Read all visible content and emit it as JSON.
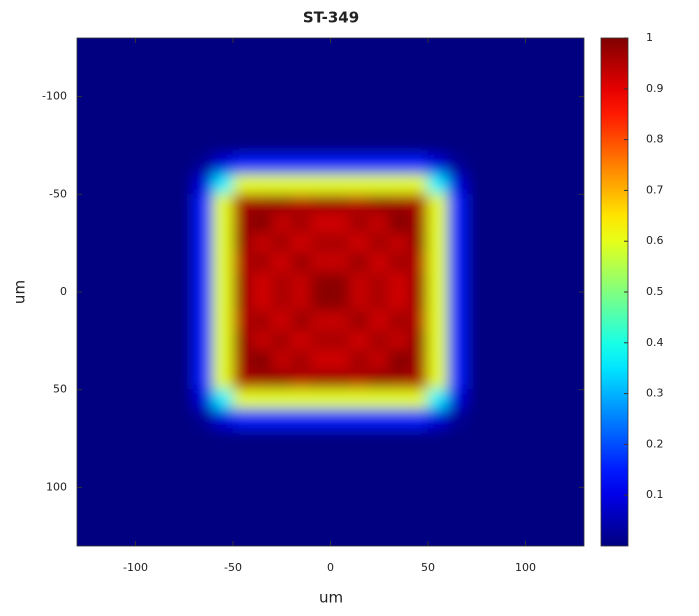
{
  "chart_data": {
    "type": "heatmap",
    "title": "ST-349",
    "xlabel": "um",
    "ylabel": "um",
    "colormap": "jet",
    "y_reversed": true,
    "xlim": [
      -130,
      130
    ],
    "ylim": [
      -130,
      130
    ],
    "xticks": [
      -100,
      -50,
      0,
      50,
      100
    ],
    "yticks": [
      -100,
      -50,
      0,
      50,
      100
    ],
    "clim": [
      0,
      1
    ],
    "cticks": [
      0.1,
      0.2,
      0.3,
      0.4,
      0.5,
      0.6,
      0.7,
      0.8,
      0.9,
      1
    ],
    "x": [
      -125,
      -115,
      -105,
      -95,
      -85,
      -75,
      -65,
      -55,
      -45,
      -35,
      -25,
      -15,
      -5,
      5,
      15,
      25,
      35,
      45,
      55,
      65,
      75,
      85,
      95,
      105,
      115,
      125
    ],
    "y": [
      -125,
      -115,
      -105,
      -95,
      -85,
      -75,
      -65,
      -55,
      -45,
      -35,
      -25,
      -15,
      -5,
      5,
      15,
      25,
      35,
      45,
      55,
      65,
      75,
      85,
      95,
      105,
      115,
      125
    ],
    "z": [
      [
        0,
        0,
        0,
        0,
        0,
        0,
        0,
        0,
        0,
        0,
        0,
        0,
        0,
        0,
        0,
        0,
        0,
        0,
        0,
        0,
        0,
        0,
        0,
        0,
        0,
        0
      ],
      [
        0,
        0,
        0,
        0,
        0,
        0,
        0,
        0,
        0,
        0,
        0,
        0,
        0,
        0,
        0,
        0,
        0,
        0,
        0,
        0,
        0,
        0,
        0,
        0,
        0,
        0
      ],
      [
        0,
        0,
        0,
        0,
        0,
        0,
        0,
        0,
        0,
        0,
        0,
        0,
        0,
        0,
        0,
        0,
        0,
        0,
        0,
        0,
        0,
        0,
        0,
        0,
        0,
        0
      ],
      [
        0,
        0,
        0,
        0,
        0,
        0,
        0,
        0,
        0,
        0,
        0,
        0,
        0,
        0,
        0,
        0,
        0,
        0,
        0,
        0,
        0,
        0,
        0,
        0,
        0,
        0
      ],
      [
        0,
        0,
        0,
        0,
        0,
        0,
        0,
        0,
        0,
        0,
        0,
        0,
        0,
        0,
        0,
        0,
        0,
        0,
        0,
        0,
        0,
        0,
        0,
        0,
        0,
        0
      ],
      [
        0,
        0,
        0,
        0,
        0,
        0,
        0,
        0,
        0,
        0,
        0,
        0,
        0,
        0,
        0,
        0,
        0,
        0,
        0,
        0,
        0,
        0,
        0,
        0,
        0,
        0
      ],
      [
        0,
        0,
        0,
        0,
        0,
        0,
        0.02,
        0.09,
        0.15,
        0.15,
        0.15,
        0.15,
        0.15,
        0.15,
        0.15,
        0.15,
        0.15,
        0.15,
        0.09,
        0.02,
        0,
        0,
        0,
        0,
        0,
        0
      ],
      [
        0,
        0,
        0,
        0,
        0,
        0,
        0.09,
        0.36,
        0.6,
        0.6,
        0.6,
        0.6,
        0.6,
        0.6,
        0.6,
        0.6,
        0.6,
        0.6,
        0.36,
        0.09,
        0,
        0,
        0,
        0,
        0,
        0
      ],
      [
        0,
        0,
        0,
        0,
        0,
        0,
        0.15,
        0.6,
        0.96,
        0.97,
        0.98,
        0.95,
        0.97,
        0.97,
        0.95,
        0.98,
        0.97,
        0.96,
        0.6,
        0.15,
        0,
        0,
        0,
        0,
        0,
        0
      ],
      [
        0,
        0,
        0,
        0,
        0,
        0,
        0.15,
        0.6,
        0.97,
        1,
        0.93,
        0.97,
        0.92,
        0.92,
        0.97,
        0.93,
        1,
        0.97,
        0.6,
        0.15,
        0,
        0,
        0,
        0,
        0,
        0
      ],
      [
        0,
        0,
        0,
        0,
        0,
        0,
        0.15,
        0.6,
        0.98,
        0.93,
        0.97,
        0.92,
        0.96,
        0.96,
        0.92,
        0.97,
        0.93,
        0.98,
        0.6,
        0.15,
        0,
        0,
        0,
        0,
        0,
        0
      ],
      [
        0,
        0,
        0,
        0,
        0,
        0,
        0.15,
        0.6,
        0.95,
        0.97,
        0.92,
        0.98,
        0.93,
        0.93,
        0.98,
        0.92,
        0.97,
        0.95,
        0.6,
        0.15,
        0,
        0,
        0,
        0,
        0,
        0
      ],
      [
        0,
        0,
        0,
        0,
        0,
        0,
        0.15,
        0.6,
        0.97,
        0.92,
        0.96,
        0.93,
        0.99,
        0.99,
        0.93,
        0.96,
        0.92,
        0.97,
        0.6,
        0.15,
        0,
        0,
        0,
        0,
        0,
        0
      ],
      [
        0,
        0,
        0,
        0,
        0,
        0,
        0.15,
        0.6,
        0.97,
        0.92,
        0.96,
        0.93,
        0.99,
        0.99,
        0.93,
        0.96,
        0.92,
        0.97,
        0.6,
        0.15,
        0,
        0,
        0,
        0,
        0,
        0
      ],
      [
        0,
        0,
        0,
        0,
        0,
        0,
        0.15,
        0.6,
        0.95,
        0.97,
        0.92,
        0.98,
        0.93,
        0.93,
        0.98,
        0.92,
        0.97,
        0.95,
        0.6,
        0.15,
        0,
        0,
        0,
        0,
        0,
        0
      ],
      [
        0,
        0,
        0,
        0,
        0,
        0,
        0.15,
        0.6,
        0.98,
        0.93,
        0.97,
        0.92,
        0.96,
        0.96,
        0.92,
        0.97,
        0.93,
        0.98,
        0.6,
        0.15,
        0,
        0,
        0,
        0,
        0,
        0
      ],
      [
        0,
        0,
        0,
        0,
        0,
        0,
        0.15,
        0.6,
        0.97,
        1,
        0.93,
        0.97,
        0.92,
        0.92,
        0.97,
        0.93,
        1,
        0.97,
        0.6,
        0.15,
        0,
        0,
        0,
        0,
        0,
        0
      ],
      [
        0,
        0,
        0,
        0,
        0,
        0,
        0.15,
        0.6,
        0.96,
        0.97,
        0.98,
        0.95,
        0.97,
        0.97,
        0.95,
        0.98,
        0.97,
        0.96,
        0.6,
        0.15,
        0,
        0,
        0,
        0,
        0,
        0
      ],
      [
        0,
        0,
        0,
        0,
        0,
        0,
        0.09,
        0.36,
        0.6,
        0.6,
        0.6,
        0.6,
        0.6,
        0.6,
        0.6,
        0.6,
        0.6,
        0.6,
        0.36,
        0.09,
        0,
        0,
        0,
        0,
        0,
        0
      ],
      [
        0,
        0,
        0,
        0,
        0,
        0,
        0.02,
        0.09,
        0.15,
        0.15,
        0.15,
        0.15,
        0.15,
        0.15,
        0.15,
        0.15,
        0.15,
        0.15,
        0.09,
        0.02,
        0,
        0,
        0,
        0,
        0,
        0
      ],
      [
        0,
        0,
        0,
        0,
        0,
        0,
        0,
        0,
        0,
        0,
        0,
        0,
        0,
        0,
        0,
        0,
        0,
        0,
        0,
        0,
        0,
        0,
        0,
        0,
        0,
        0
      ],
      [
        0,
        0,
        0,
        0,
        0,
        0,
        0,
        0,
        0,
        0,
        0,
        0,
        0,
        0,
        0,
        0,
        0,
        0,
        0,
        0,
        0,
        0,
        0,
        0,
        0,
        0
      ],
      [
        0,
        0,
        0,
        0,
        0,
        0,
        0,
        0,
        0,
        0,
        0,
        0,
        0,
        0,
        0,
        0,
        0,
        0,
        0,
        0,
        0,
        0,
        0,
        0,
        0,
        0
      ],
      [
        0,
        0,
        0,
        0,
        0,
        0,
        0,
        0,
        0,
        0,
        0,
        0,
        0,
        0,
        0,
        0,
        0,
        0,
        0,
        0,
        0,
        0,
        0,
        0,
        0,
        0
      ],
      [
        0,
        0,
        0,
        0,
        0,
        0,
        0,
        0,
        0,
        0,
        0,
        0,
        0,
        0,
        0,
        0,
        0,
        0,
        0,
        0,
        0,
        0,
        0,
        0,
        0,
        0
      ],
      [
        0,
        0,
        0,
        0,
        0,
        0,
        0,
        0,
        0,
        0,
        0,
        0,
        0,
        0,
        0,
        0,
        0,
        0,
        0,
        0,
        0,
        0,
        0,
        0,
        0,
        0
      ]
    ]
  }
}
